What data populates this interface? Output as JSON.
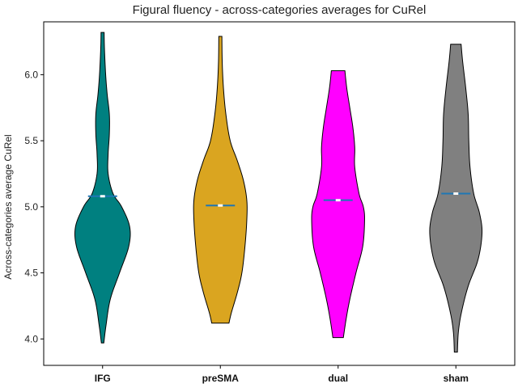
{
  "chart_data": {
    "type": "violin",
    "title": "Figural fluency - across-categories averages for CuRel",
    "xlabel": "",
    "ylabel": "Across-categories average CuRel",
    "ylim": [
      3.8,
      6.4
    ],
    "yticks": [
      4.0,
      4.5,
      5.0,
      5.5,
      6.0
    ],
    "ytick_labels": [
      "4.0",
      "4.5",
      "5.0",
      "5.5",
      "6.0"
    ],
    "categories": [
      "IFG",
      "preSMA",
      "dual",
      "sham"
    ],
    "grid": false,
    "violins": [
      {
        "category": "IFG",
        "color": "#008080",
        "min": 3.97,
        "max": 6.32,
        "mean": 5.08,
        "profile": [
          [
            3.97,
            0.04
          ],
          [
            4.1,
            0.11
          ],
          [
            4.3,
            0.25
          ],
          [
            4.5,
            0.55
          ],
          [
            4.7,
            0.85
          ],
          [
            4.85,
            0.88
          ],
          [
            5.0,
            0.62
          ],
          [
            5.1,
            0.34
          ],
          [
            5.25,
            0.18
          ],
          [
            5.4,
            0.18
          ],
          [
            5.55,
            0.22
          ],
          [
            5.7,
            0.22
          ],
          [
            5.85,
            0.15
          ],
          [
            6.0,
            0.1
          ],
          [
            6.2,
            0.06
          ],
          [
            6.32,
            0.05
          ]
        ]
      },
      {
        "category": "preSMA",
        "color": "#DAA520",
        "min": 4.12,
        "max": 6.29,
        "mean": 5.01,
        "profile": [
          [
            4.12,
            0.28
          ],
          [
            4.2,
            0.36
          ],
          [
            4.35,
            0.55
          ],
          [
            4.5,
            0.7
          ],
          [
            4.7,
            0.8
          ],
          [
            4.9,
            0.86
          ],
          [
            5.05,
            0.86
          ],
          [
            5.2,
            0.75
          ],
          [
            5.35,
            0.55
          ],
          [
            5.5,
            0.32
          ],
          [
            5.7,
            0.18
          ],
          [
            5.9,
            0.1
          ],
          [
            6.1,
            0.06
          ],
          [
            6.29,
            0.05
          ]
        ]
      },
      {
        "category": "dual",
        "color": "#FF00FF",
        "min": 4.01,
        "max": 6.03,
        "mean": 5.05,
        "profile": [
          [
            4.01,
            0.17
          ],
          [
            4.15,
            0.26
          ],
          [
            4.3,
            0.38
          ],
          [
            4.5,
            0.58
          ],
          [
            4.7,
            0.8
          ],
          [
            4.9,
            0.86
          ],
          [
            5.0,
            0.82
          ],
          [
            5.1,
            0.68
          ],
          [
            5.3,
            0.54
          ],
          [
            5.45,
            0.54
          ],
          [
            5.6,
            0.48
          ],
          [
            5.75,
            0.38
          ],
          [
            5.9,
            0.28
          ],
          [
            6.03,
            0.22
          ]
        ]
      },
      {
        "category": "sham",
        "color": "#808080",
        "min": 3.9,
        "max": 6.23,
        "mean": 5.1,
        "profile": [
          [
            3.9,
            0.05
          ],
          [
            4.05,
            0.08
          ],
          [
            4.2,
            0.18
          ],
          [
            4.4,
            0.4
          ],
          [
            4.6,
            0.72
          ],
          [
            4.8,
            0.85
          ],
          [
            4.95,
            0.77
          ],
          [
            5.1,
            0.58
          ],
          [
            5.3,
            0.46
          ],
          [
            5.5,
            0.42
          ],
          [
            5.7,
            0.4
          ],
          [
            5.9,
            0.32
          ],
          [
            6.1,
            0.22
          ],
          [
            6.23,
            0.17
          ]
        ]
      }
    ]
  }
}
